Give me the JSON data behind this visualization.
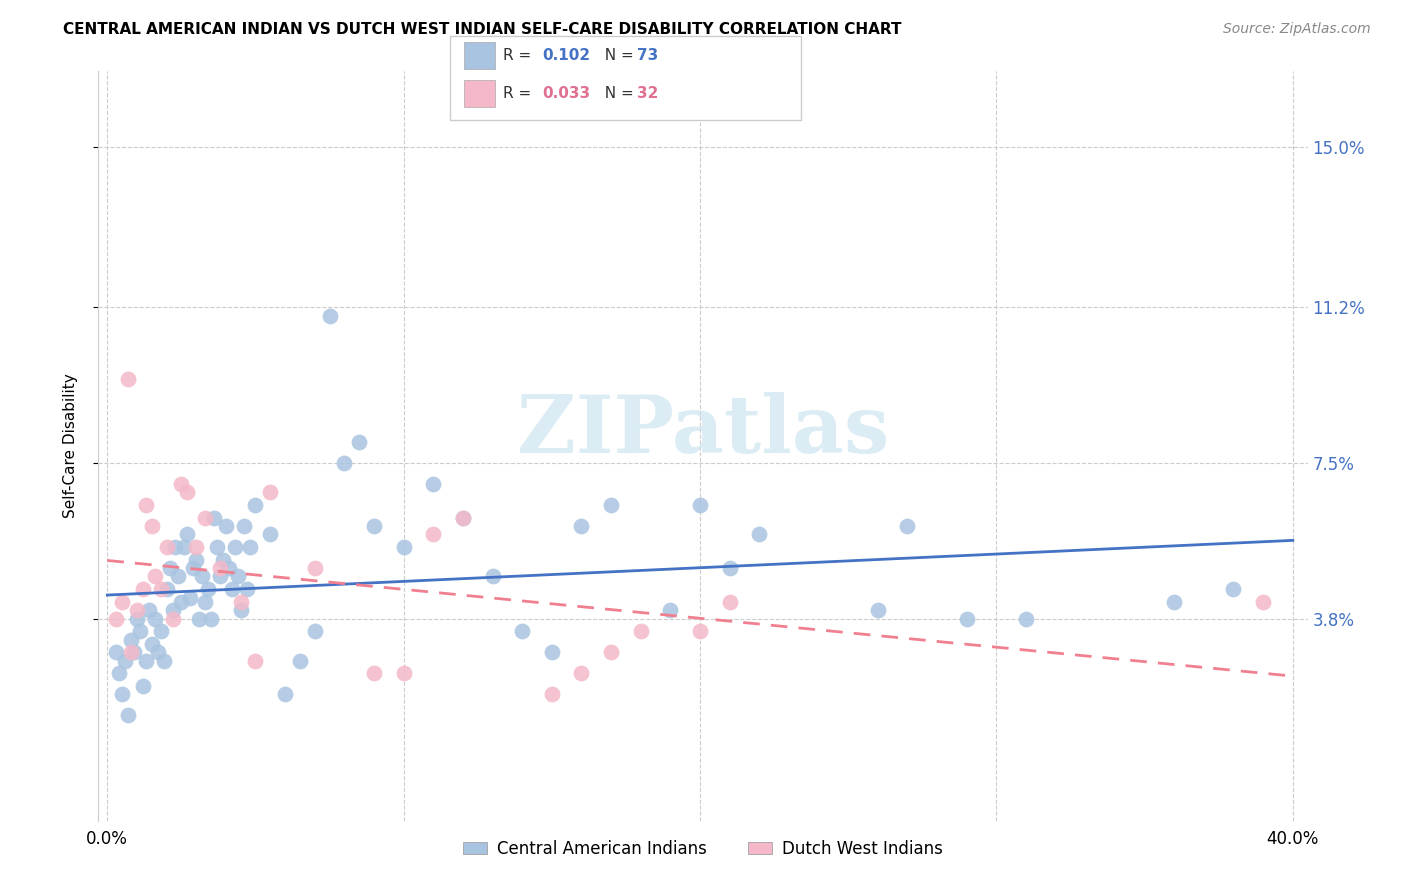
{
  "title": "CENTRAL AMERICAN INDIAN VS DUTCH WEST INDIAN SELF-CARE DISABILITY CORRELATION CHART",
  "source": "Source: ZipAtlas.com",
  "ylabel": "Self-Care Disability",
  "xlim": [
    -0.003,
    0.405
  ],
  "ylim": [
    -0.01,
    0.168
  ],
  "yticks": [
    0.038,
    0.075,
    0.112,
    0.15
  ],
  "ytick_labels": [
    "3.8%",
    "7.5%",
    "11.2%",
    "15.0%"
  ],
  "xticks": [
    0.0,
    0.1,
    0.2,
    0.3,
    0.4
  ],
  "xtick_labels": [
    "0.0%",
    "",
    "",
    "",
    "40.0%"
  ],
  "blue_R": "0.102",
  "blue_N": "73",
  "pink_R": "0.033",
  "pink_N": "32",
  "blue_color": "#a8c4e0",
  "pink_color": "#f4b8c8",
  "blue_line_color": "#4472c4",
  "pink_line_color": "#f08090",
  "watermark_color": "#cce4f0",
  "legend_label_blue": "Central American Indians",
  "legend_label_pink": "Dutch West Indians",
  "blue_R_color": "#4472c4",
  "pink_R_color": "#e07090",
  "blue_scatter_x": [
    0.003,
    0.004,
    0.005,
    0.006,
    0.007,
    0.008,
    0.009,
    0.01,
    0.011,
    0.012,
    0.013,
    0.014,
    0.015,
    0.016,
    0.017,
    0.018,
    0.019,
    0.02,
    0.021,
    0.022,
    0.023,
    0.024,
    0.025,
    0.026,
    0.027,
    0.028,
    0.029,
    0.03,
    0.031,
    0.032,
    0.033,
    0.034,
    0.035,
    0.036,
    0.037,
    0.038,
    0.039,
    0.04,
    0.041,
    0.042,
    0.043,
    0.044,
    0.045,
    0.046,
    0.047,
    0.048,
    0.05,
    0.055,
    0.06,
    0.065,
    0.07,
    0.075,
    0.08,
    0.085,
    0.09,
    0.1,
    0.11,
    0.12,
    0.13,
    0.14,
    0.15,
    0.16,
    0.17,
    0.19,
    0.2,
    0.21,
    0.22,
    0.26,
    0.27,
    0.29,
    0.31,
    0.36,
    0.38
  ],
  "blue_scatter_y": [
    0.03,
    0.025,
    0.02,
    0.028,
    0.015,
    0.033,
    0.03,
    0.038,
    0.035,
    0.022,
    0.028,
    0.04,
    0.032,
    0.038,
    0.03,
    0.035,
    0.028,
    0.045,
    0.05,
    0.04,
    0.055,
    0.048,
    0.042,
    0.055,
    0.058,
    0.043,
    0.05,
    0.052,
    0.038,
    0.048,
    0.042,
    0.045,
    0.038,
    0.062,
    0.055,
    0.048,
    0.052,
    0.06,
    0.05,
    0.045,
    0.055,
    0.048,
    0.04,
    0.06,
    0.045,
    0.055,
    0.065,
    0.058,
    0.02,
    0.028,
    0.035,
    0.11,
    0.075,
    0.08,
    0.06,
    0.055,
    0.07,
    0.062,
    0.048,
    0.035,
    0.03,
    0.06,
    0.065,
    0.04,
    0.065,
    0.05,
    0.058,
    0.04,
    0.06,
    0.038,
    0.038,
    0.042,
    0.045
  ],
  "pink_scatter_x": [
    0.003,
    0.005,
    0.007,
    0.008,
    0.01,
    0.012,
    0.013,
    0.015,
    0.016,
    0.018,
    0.02,
    0.022,
    0.025,
    0.027,
    0.03,
    0.033,
    0.038,
    0.045,
    0.05,
    0.055,
    0.07,
    0.09,
    0.1,
    0.11,
    0.12,
    0.15,
    0.16,
    0.17,
    0.18,
    0.2,
    0.21,
    0.39
  ],
  "pink_scatter_y": [
    0.038,
    0.042,
    0.095,
    0.03,
    0.04,
    0.045,
    0.065,
    0.06,
    0.048,
    0.045,
    0.055,
    0.038,
    0.07,
    0.068,
    0.055,
    0.062,
    0.05,
    0.042,
    0.028,
    0.068,
    0.05,
    0.025,
    0.025,
    0.058,
    0.062,
    0.02,
    0.025,
    0.03,
    0.035,
    0.035,
    0.042,
    0.042
  ]
}
